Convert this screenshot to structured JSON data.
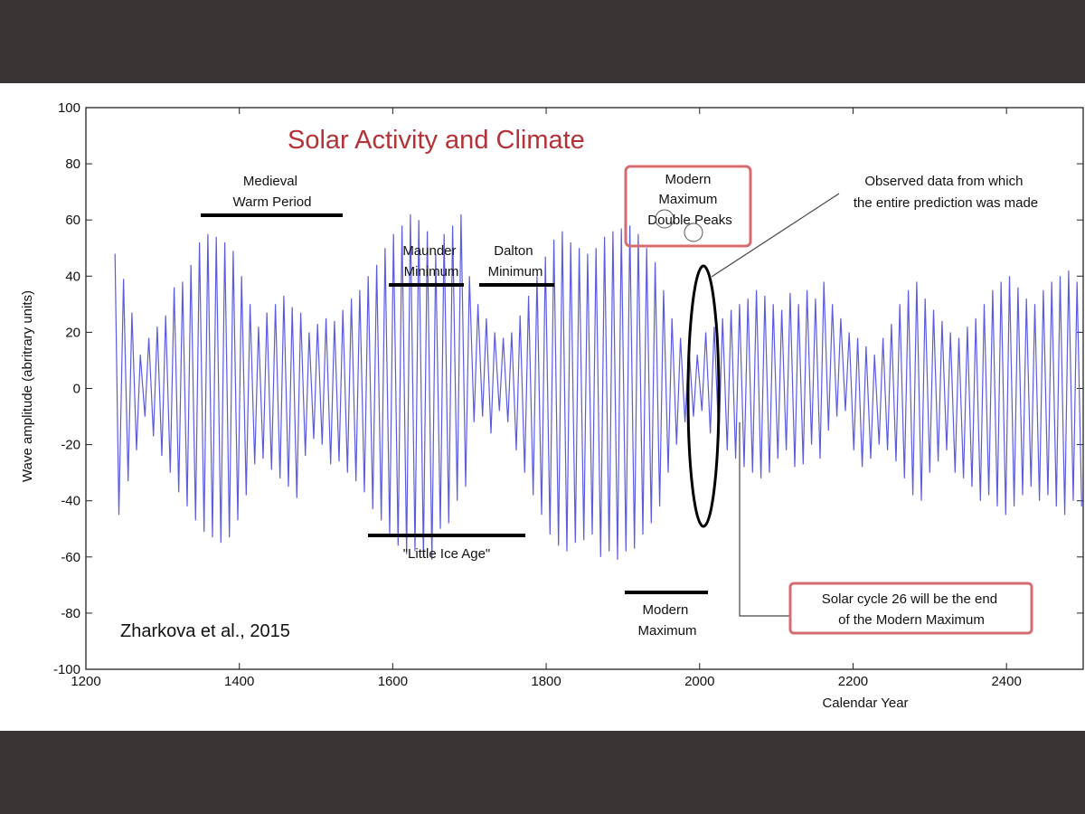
{
  "chart_data": {
    "type": "line",
    "title": "Solar Activity and Climate",
    "xlabel": "Calendar Year",
    "ylabel": "Wave amplitude (abritrary units)",
    "xlim": [
      1200,
      2500
    ],
    "ylim": [
      -100,
      100
    ],
    "xticks": [
      1200,
      1400,
      1600,
      1800,
      2000,
      2200,
      2400
    ],
    "yticks": [
      100,
      80,
      60,
      40,
      20,
      0,
      -20,
      -40,
      -60,
      -80,
      -100
    ],
    "grid": false,
    "series_color": "#5b5be0",
    "title_color": "#b23338",
    "series": [
      {
        "x": [
          1238,
          1243,
          1249,
          1255,
          1260,
          1266,
          1271,
          1277,
          1282,
          1288,
          1293,
          1299,
          1304,
          1310,
          1315,
          1321,
          1326,
          1332,
          1337,
          1343,
          1348,
          1354,
          1359,
          1365,
          1370,
          1376,
          1381,
          1387,
          1392,
          1398,
          1403,
          1409,
          1414,
          1420,
          1425,
          1431,
          1436,
          1442,
          1447,
          1453,
          1458,
          1464,
          1469,
          1475,
          1480,
          1486,
          1491,
          1497,
          1502,
          1508,
          1513,
          1519,
          1524,
          1530,
          1535,
          1541,
          1546,
          1552,
          1557,
          1563,
          1568,
          1574,
          1579,
          1585,
          1590,
          1596,
          1601,
          1607,
          1612,
          1618,
          1623,
          1629,
          1634,
          1640,
          1645,
          1651,
          1656,
          1662,
          1667,
          1673,
          1678,
          1684,
          1689,
          1695,
          1700,
          1706,
          1711,
          1717,
          1722,
          1728,
          1733,
          1739,
          1744,
          1750,
          1755,
          1761,
          1766,
          1772,
          1777,
          1783,
          1788,
          1794,
          1799,
          1805,
          1810,
          1816,
          1821,
          1827,
          1832,
          1838,
          1843,
          1849,
          1854,
          1860,
          1865,
          1871,
          1876,
          1882,
          1887,
          1893,
          1898,
          1904,
          1909,
          1915,
          1920,
          1926,
          1931,
          1937,
          1942,
          1948,
          1953,
          1959,
          1964,
          1970,
          1975,
          1981,
          1986,
          1992,
          1997,
          2003,
          2008,
          2014,
          2019,
          2025,
          2030,
          2036,
          2041,
          2047,
          2052,
          2058,
          2063,
          2069,
          2074,
          2080,
          2085,
          2091,
          2096,
          2102,
          2107,
          2113,
          2118,
          2124,
          2129,
          2135,
          2140,
          2146,
          2151,
          2157,
          2162,
          2168,
          2173,
          2179,
          2184,
          2190,
          2195,
          2201,
          2206,
          2212,
          2217,
          2223,
          2228,
          2234,
          2239,
          2245,
          2250,
          2256,
          2261,
          2267,
          2272,
          2278,
          2283,
          2289,
          2294,
          2300,
          2305,
          2311,
          2316,
          2322,
          2327,
          2333,
          2338,
          2344,
          2349,
          2355,
          2360,
          2366,
          2371,
          2377,
          2382,
          2388,
          2393,
          2399,
          2404,
          2410,
          2415,
          2421,
          2426,
          2432,
          2437,
          2443,
          2448,
          2454,
          2459,
          2465,
          2470,
          2476,
          2481,
          2487,
          2492,
          2498
        ],
        "values": [
          48,
          -45,
          39,
          -33,
          27,
          -22,
          12,
          -10,
          18,
          -17,
          22,
          -24,
          26,
          -30,
          36,
          -37,
          38,
          -42,
          44,
          -47,
          52,
          -51,
          55,
          -53,
          54,
          -55,
          52,
          -53,
          49,
          -47,
          40,
          -38,
          30,
          -27,
          22,
          -25,
          27,
          -29,
          30,
          -32,
          33,
          -35,
          29,
          -39,
          27,
          -24,
          20,
          -18,
          23,
          -20,
          25,
          -27,
          24,
          -26,
          28,
          -30,
          32,
          -33,
          35,
          -37,
          40,
          -43,
          44,
          -47,
          50,
          -52,
          55,
          -56,
          58,
          -59,
          62,
          -58,
          60,
          -60,
          56,
          -61,
          48,
          -50,
          55,
          -48,
          58,
          -40,
          62,
          -35,
          40,
          -12,
          30,
          -10,
          25,
          -16,
          20,
          -8,
          18,
          -12,
          20,
          -22,
          26,
          -30,
          33,
          -38,
          40,
          -45,
          47,
          -52,
          53,
          -56,
          56,
          -58,
          52,
          -55,
          50,
          -54,
          48,
          -52,
          50,
          -60,
          54,
          -58,
          56,
          -61,
          57,
          -58,
          58,
          -57,
          55,
          -52,
          50,
          -48,
          45,
          -42,
          35,
          -30,
          25,
          -20,
          18,
          -12,
          15,
          -10,
          12,
          -8,
          20,
          -16,
          22,
          -18,
          25,
          -22,
          28,
          -25,
          30,
          -28,
          32,
          -30,
          35,
          -32,
          33,
          -30,
          30,
          -25,
          28,
          -22,
          34,
          -28,
          30,
          -27,
          35,
          -20,
          32,
          -25,
          38,
          -15,
          30,
          -10,
          25,
          -8,
          20,
          -22,
          18,
          -28,
          15,
          -25,
          12,
          -20,
          18,
          -22,
          23,
          -26,
          30,
          -32,
          35,
          -38,
          38,
          -40,
          32,
          -30,
          28,
          -26,
          24,
          -22,
          20,
          -30,
          18,
          -32,
          22,
          -35,
          25,
          -40,
          30,
          -38,
          35,
          -42,
          38,
          -45,
          40,
          -42,
          36,
          -38,
          32,
          -35,
          30,
          -40,
          35,
          -38,
          38,
          -42,
          40,
          -45,
          42,
          -40,
          38,
          -42
        ]
      }
    ],
    "annotations": {
      "medieval": [
        "Medieval",
        "Warm Period"
      ],
      "maunder": [
        "Maunder",
        "Minimum"
      ],
      "dalton": [
        "Dalton",
        "Minimum"
      ],
      "little_ice_age": "\"Little Ice Age\"",
      "modern_bottom": [
        "Modern",
        "Maximum"
      ],
      "modern_box": [
        "Modern",
        "Maximum",
        "Double Peaks"
      ],
      "observed": [
        "Observed data from which",
        "the entire prediction was made"
      ],
      "cycle26": [
        "Solar cycle 26 will be the end",
        "of the Modern Maximum"
      ],
      "credit": "Zharkova et al., 2015"
    }
  }
}
